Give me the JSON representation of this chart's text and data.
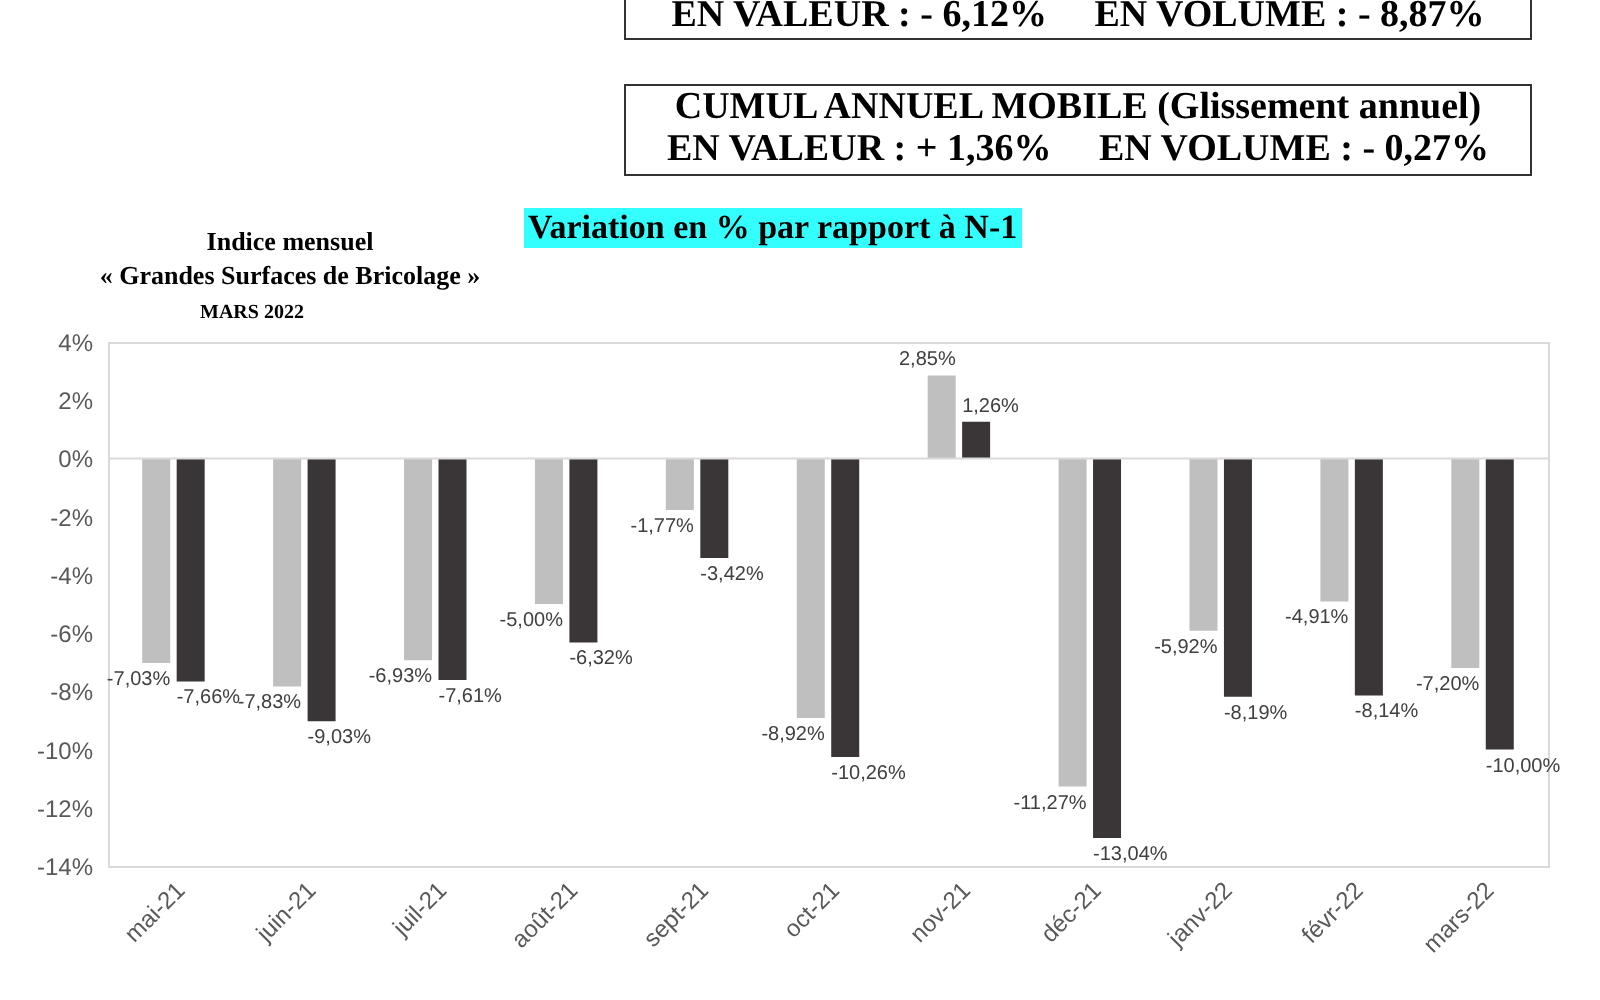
{
  "chart_data": {
    "type": "bar",
    "title": "Variation en % par rapport à N-1",
    "subtitle": "MARS 2022",
    "annotations": [
      "EN VALEUR : - 6,12%     EN VOLUME : - 8,87%",
      "CUMUL ANNUEL MOBILE (Glissement annuel)",
      "EN VALEUR : + 1,36%     EN VOLUME : - 0,27%",
      "Indice mensuel",
      "« Grandes Surfaces de Bricolage »"
    ],
    "categories": [
      "mai-21",
      "juin-21",
      "juil-21",
      "août-21",
      "sept-21",
      "oct-21",
      "nov-21",
      "déc-21",
      "janv-22",
      "févr-22",
      "mars-22"
    ],
    "series": [
      {
        "color": "#bfbfbf",
        "values": [
          -7.03,
          -7.83,
          -6.93,
          -5.0,
          -1.77,
          -8.92,
          2.85,
          -11.27,
          -5.92,
          -4.91,
          -7.2
        ],
        "value_labels": [
          "-7,03%",
          "-7,83%",
          "-6,93%",
          "-5,00%",
          "-1,77%",
          "-8,92%",
          "2,85%",
          "-11,27%",
          "-5,92%",
          "-4,91%",
          "-7,20%"
        ]
      },
      {
        "color": "#3a3536",
        "values": [
          -7.66,
          -9.03,
          -7.61,
          -6.32,
          -3.42,
          -10.26,
          1.26,
          -13.04,
          -8.19,
          -8.14,
          -10.0
        ],
        "value_labels": [
          "-7,66%",
          "-9,03%",
          "-7,61%",
          "-6,32%",
          "-3,42%",
          "-10,26%",
          "1,26%",
          "-13,04%",
          "-8,19%",
          "-8,14%",
          "-10,00%"
        ]
      }
    ],
    "ylim": [
      -14,
      4
    ],
    "yticks": [
      {
        "value": 4,
        "label": "4%"
      },
      {
        "value": 2,
        "label": "2%"
      },
      {
        "value": 0,
        "label": "0%"
      },
      {
        "value": -2,
        "label": "-2%"
      },
      {
        "value": -4,
        "label": "-4%"
      },
      {
        "value": -6,
        "label": "-6%"
      },
      {
        "value": -8,
        "label": "-8%"
      },
      {
        "value": -10,
        "label": "-10%"
      },
      {
        "value": -12,
        "label": "-12%"
      },
      {
        "value": -14,
        "label": "-14%"
      }
    ],
    "ref_lines": [
      {
        "axis": "y",
        "value": 0,
        "color": "#d9d9d9"
      }
    ],
    "grid": false,
    "legend": false
  }
}
